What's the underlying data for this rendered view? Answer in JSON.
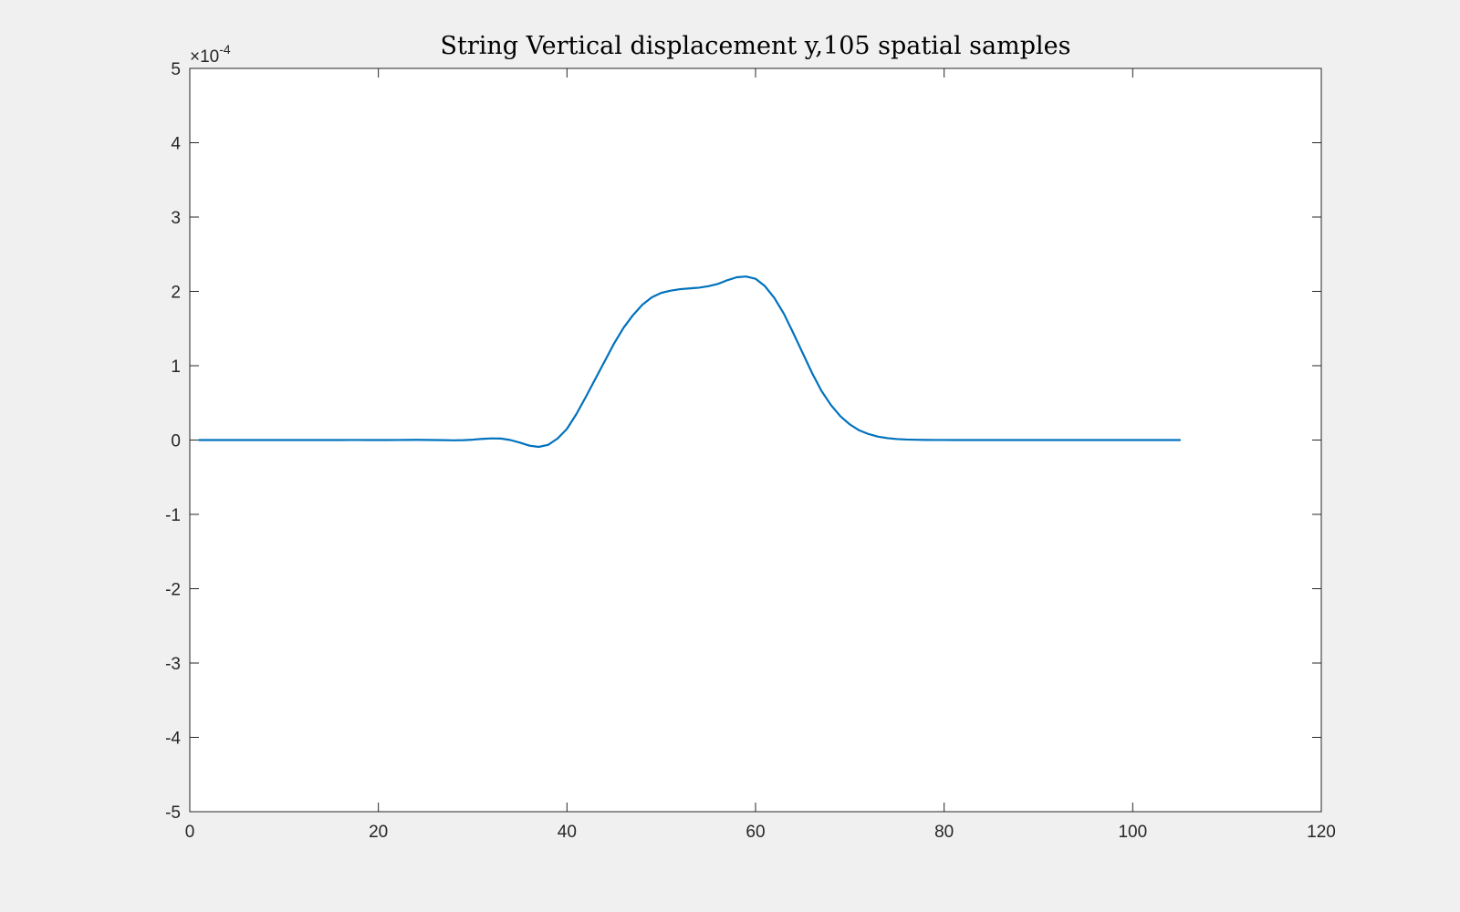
{
  "chart_data": {
    "type": "line",
    "title": "String Vertical displacement y,105 spatial samples",
    "xlabel": "",
    "ylabel": "",
    "xlim": [
      0,
      120
    ],
    "ylim": [
      -5,
      5
    ],
    "y_multiplier": {
      "prefix": "×10",
      "exponent": "-4"
    },
    "xticks": [
      0,
      20,
      40,
      60,
      80,
      100,
      120
    ],
    "yticks": [
      -5,
      -4,
      -3,
      -2,
      -1,
      0,
      1,
      2,
      3,
      4,
      5
    ],
    "grid": false,
    "legend": "none",
    "colors": {
      "line": "#0072bd",
      "axes": "#262626",
      "plot_bg": "#ffffff",
      "figure_bg": "#f0f0f0"
    },
    "series": [
      {
        "x": [
          1,
          2,
          3,
          4,
          5,
          6,
          7,
          8,
          9,
          10,
          11,
          12,
          13,
          14,
          15,
          16,
          17,
          18,
          19,
          20,
          21,
          22,
          23,
          24,
          25,
          26,
          27,
          28,
          29,
          30,
          31,
          32,
          33,
          34,
          35,
          36,
          37,
          38,
          39,
          40,
          41,
          42,
          43,
          44,
          45,
          46,
          47,
          48,
          49,
          50,
          51,
          52,
          53,
          54,
          55,
          56,
          57,
          58,
          59,
          60,
          61,
          62,
          63,
          64,
          65,
          66,
          67,
          68,
          69,
          70,
          71,
          72,
          73,
          74,
          75,
          76,
          77,
          78,
          79,
          80,
          81,
          82,
          83,
          84,
          85,
          86,
          87,
          88,
          89,
          90,
          91,
          92,
          93,
          94,
          95,
          96,
          97,
          98,
          99,
          100,
          101,
          102,
          103,
          104,
          105
        ],
        "y": [
          0,
          0,
          0,
          0,
          0,
          0,
          0,
          0,
          0,
          0,
          0,
          0,
          0,
          0,
          0,
          0,
          0.001,
          0.001,
          0,
          0,
          0,
          0.001,
          0.002,
          0.003,
          0.002,
          0,
          -0.002,
          -0.004,
          -0.002,
          0.005,
          0.015,
          0.022,
          0.02,
          0,
          -0.035,
          -0.075,
          -0.092,
          -0.065,
          0.02,
          0.15,
          0.35,
          0.58,
          0.82,
          1.06,
          1.3,
          1.51,
          1.68,
          1.82,
          1.92,
          1.98,
          2.01,
          2.03,
          2.04,
          2.05,
          2.07,
          2.1,
          2.15,
          2.19,
          2.2,
          2.17,
          2.07,
          1.91,
          1.7,
          1.44,
          1.17,
          0.9,
          0.66,
          0.47,
          0.32,
          0.21,
          0.13,
          0.08,
          0.045,
          0.025,
          0.013,
          0.007,
          0.004,
          0.002,
          0.001,
          0.001,
          0,
          0,
          0,
          0,
          0,
          0,
          0,
          0,
          0,
          0,
          0,
          0,
          0,
          0,
          0,
          0,
          0,
          0,
          0,
          0,
          0,
          0,
          0,
          0,
          0
        ]
      }
    ]
  }
}
